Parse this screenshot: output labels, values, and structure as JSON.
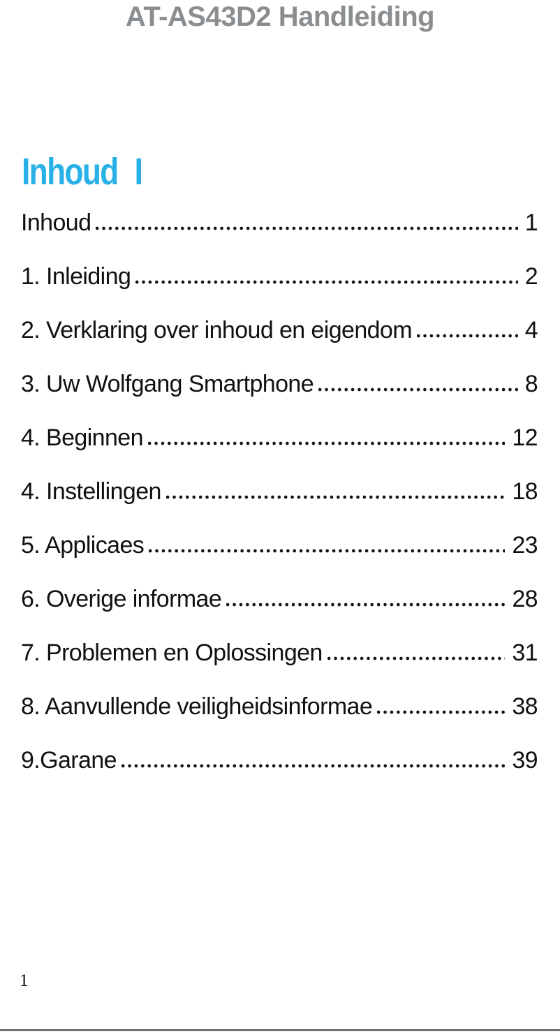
{
  "page": {
    "header_title": "AT-AS43D2 Handleiding",
    "footer_page_number": "1"
  },
  "toc": {
    "heading": "Inhoud I",
    "entries": [
      {
        "label": "Inhoud",
        "page": "1"
      },
      {
        "label": "1. Inleiding",
        "page": "2"
      },
      {
        "label": "2. Verklaring over inhoud en eigendom",
        "page": "4"
      },
      {
        "label": "3. Uw Wolfgang Smartphone",
        "page": "8"
      },
      {
        "label": "4. Beginnen",
        "page": "12"
      },
      {
        "label": "4. Instellingen",
        "page": "18"
      },
      {
        "label": "5. Applicaes",
        "page": "23"
      },
      {
        "label": "6. Overige informae",
        "page": "28"
      },
      {
        "label": "7. Problemen en Oplossingen",
        "page": "31"
      },
      {
        "label": "8. Aanvullende veiligheidsinformae",
        "page": "38"
      },
      {
        "label": "9.Garane",
        "page": "39"
      }
    ]
  },
  "colors": {
    "accent_cyan": "#29b1e7",
    "header_gray": "#8b8e91",
    "text_black": "#111111",
    "rule_gray": "#6e7176"
  }
}
